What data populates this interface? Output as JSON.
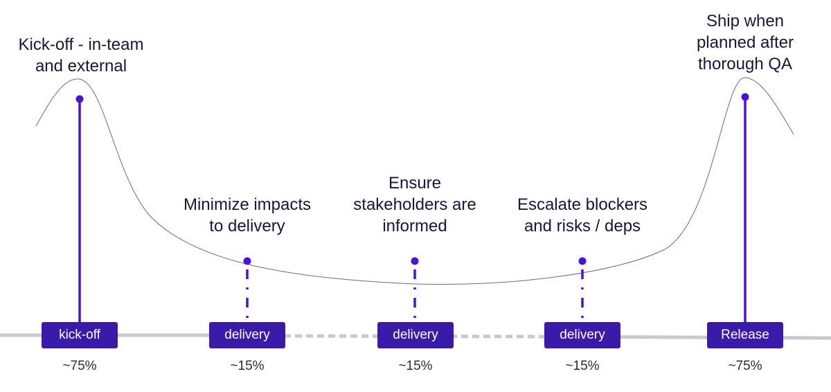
{
  "phases": [
    {
      "label": "Kick-off - in-team\nand external",
      "box": "kick-off",
      "percent": "~75%",
      "marker": "solid"
    },
    {
      "label": "Minimize impacts\nto delivery",
      "box": "delivery",
      "percent": "~15%",
      "marker": "dashed"
    },
    {
      "label": "Ensure\nstakeholders are\ninformed",
      "box": "delivery",
      "percent": "~15%",
      "marker": "dashed"
    },
    {
      "label": "Escalate blockers\nand risks / deps",
      "box": "delivery",
      "percent": "~15%",
      "marker": "dashed"
    },
    {
      "label": "Ship when\nplanned after\nthorough QA",
      "box": "Release",
      "percent": "~75%",
      "marker": "solid"
    }
  ],
  "colors": {
    "accent": "#3a1aa8",
    "marker": "#4b12d6",
    "timeline": "#c8c8d2",
    "curve": "#6b6b75",
    "text": "#16163f"
  }
}
